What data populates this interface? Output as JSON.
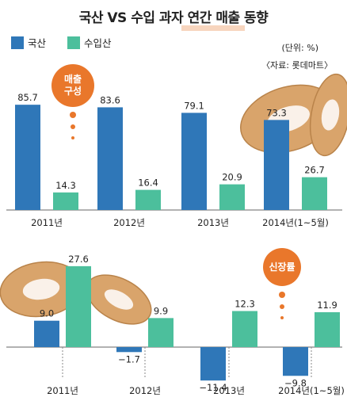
{
  "title": "국산 VS 수입 과자 연간 매출 동향",
  "unit": "(단위: %)",
  "source": "〈자료: 롯데마트〉",
  "colors": {
    "domestic": "#2f77b8",
    "imported": "#4cbf9c",
    "badge": "#e9772b",
    "axis": "#666666"
  },
  "chart_data": [
    {
      "type": "bar",
      "badge": "매출 구성",
      "badge_lines": [
        "매출",
        "구성"
      ],
      "categories": [
        "2011년",
        "2012년",
        "2013년",
        "2014년(1~5월)"
      ],
      "series": [
        {
          "name": "국산",
          "values": [
            85.7,
            83.6,
            79.1,
            73.3
          ],
          "labels": [
            "85.7",
            "83.6",
            "79.1",
            "73.3"
          ]
        },
        {
          "name": "수입산",
          "values": [
            14.3,
            16.4,
            20.9,
            26.7
          ],
          "labels": [
            "14.3",
            "16.4",
            "20.9",
            "26.7"
          ]
        }
      ]
    },
    {
      "type": "bar",
      "badge": "신장률",
      "categories": [
        "2011년",
        "2012년",
        "2013년",
        "2014년(1~5월)"
      ],
      "series": [
        {
          "name": "국산",
          "values": [
            9.0,
            -1.7,
            -11.4,
            -9.8
          ],
          "labels": [
            "9.0",
            "−1.7",
            "−11.4",
            "−9.8"
          ]
        },
        {
          "name": "수입산",
          "values": [
            27.6,
            9.9,
            12.3,
            11.9
          ],
          "labels": [
            "27.6",
            "9.9",
            "12.3",
            "11.9"
          ]
        }
      ]
    }
  ]
}
